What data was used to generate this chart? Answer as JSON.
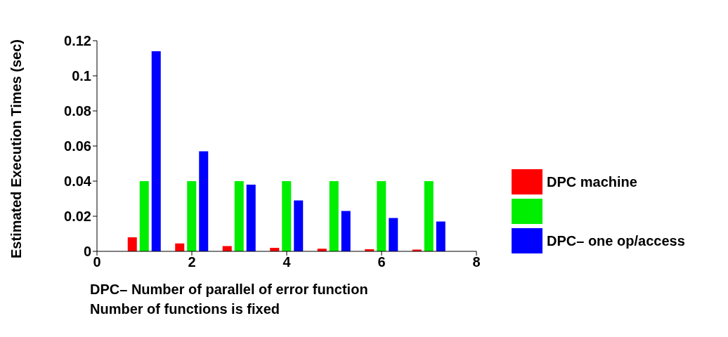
{
  "chart_data": {
    "type": "bar",
    "ylabel": "Estimated Execution Times (sec)",
    "xlabel": "DPC– Number of parallel of error function\nNumber of functions is fixed",
    "x": [
      1,
      2,
      3,
      4,
      5,
      6,
      7
    ],
    "series": [
      {
        "name": "DPC machine",
        "color": "#ff0000",
        "values": [
          0.008,
          0.0045,
          0.003,
          0.002,
          0.0015,
          0.0012,
          0.001
        ]
      },
      {
        "color": "#00ee00",
        "values": [
          0.04,
          0.04,
          0.04,
          0.04,
          0.04,
          0.04,
          0.04
        ]
      },
      {
        "name": "DPC– one op/access",
        "color": "#0000ff",
        "values": [
          0.114,
          0.057,
          0.038,
          0.029,
          0.023,
          0.019,
          0.017
        ]
      }
    ],
    "xlim": [
      0,
      8
    ],
    "xticks": [
      0,
      2,
      4,
      6,
      8
    ],
    "ylim": [
      0,
      0.12
    ],
    "yticks": [
      0,
      0.02,
      0.04,
      0.06,
      0.08,
      0.1,
      0.12
    ],
    "grid": false,
    "legend": "right"
  }
}
